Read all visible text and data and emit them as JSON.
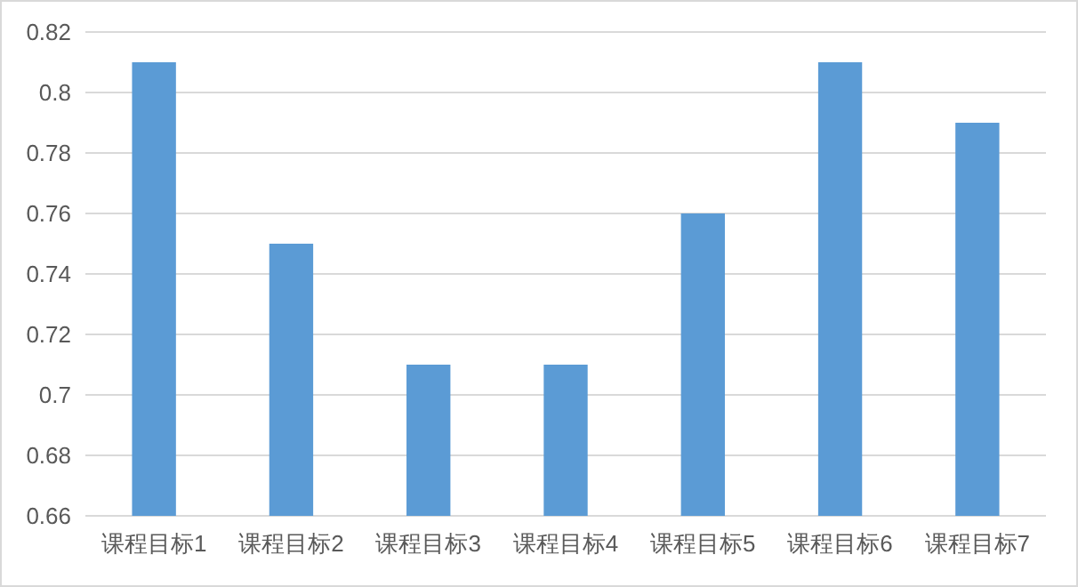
{
  "chart_data": {
    "type": "bar",
    "categories": [
      "课程目标1",
      "课程目标2",
      "课程目标3",
      "课程目标4",
      "课程目标5",
      "课程目标6",
      "课程目标7"
    ],
    "values": [
      0.81,
      0.75,
      0.71,
      0.71,
      0.76,
      0.81,
      0.79
    ],
    "color": "#5b9bd5",
    "ylim": [
      0.66,
      0.82
    ],
    "yticks": [
      0.66,
      0.68,
      0.7,
      0.72,
      0.74,
      0.76,
      0.78,
      0.8,
      0.82
    ],
    "grid": "y"
  }
}
